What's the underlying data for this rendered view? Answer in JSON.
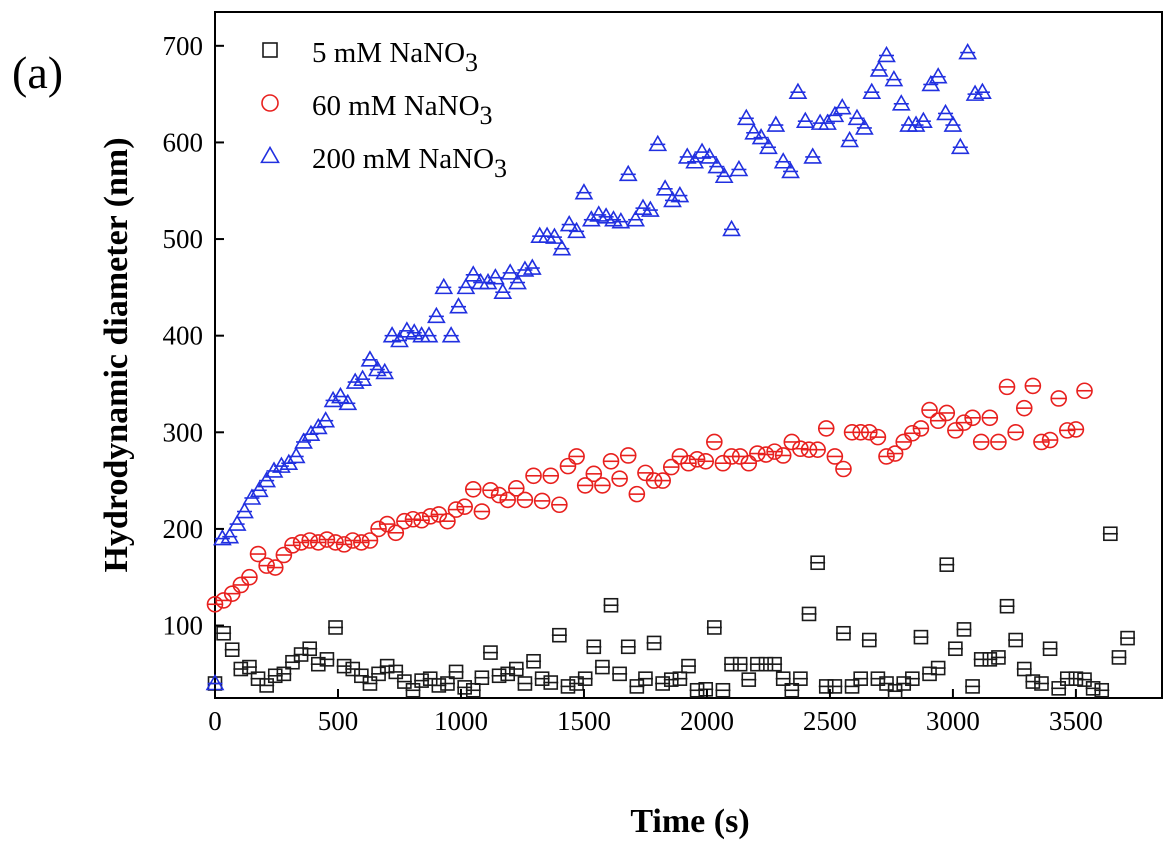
{
  "chart_data": {
    "type": "scatter",
    "panel_label": "(a)",
    "xlabel": "Time (s)",
    "ylabel": "Hydrodynamic diameter (nm)",
    "xlim": [
      0,
      3850
    ],
    "ylim": [
      25,
      735
    ],
    "xticks": [
      0,
      500,
      1000,
      1500,
      2000,
      2500,
      3000,
      3500
    ],
    "yticks": [
      100,
      200,
      300,
      400,
      500,
      600,
      700
    ],
    "legend_position": "top-left",
    "grid": false,
    "series": [
      {
        "name_main": "5 mM NaNO",
        "name_sub": "3",
        "marker": "square",
        "color": "#1a1a1a",
        "points": [
          [
            0,
            40
          ],
          [
            35,
            92
          ],
          [
            70,
            75
          ],
          [
            105,
            55
          ],
          [
            140,
            57
          ],
          [
            175,
            45
          ],
          [
            210,
            38
          ],
          [
            245,
            48
          ],
          [
            280,
            50
          ],
          [
            315,
            62
          ],
          [
            350,
            70
          ],
          [
            385,
            76
          ],
          [
            420,
            60
          ],
          [
            455,
            65
          ],
          [
            490,
            98
          ],
          [
            525,
            58
          ],
          [
            560,
            55
          ],
          [
            595,
            48
          ],
          [
            630,
            40
          ],
          [
            665,
            50
          ],
          [
            700,
            58
          ],
          [
            735,
            52
          ],
          [
            770,
            42
          ],
          [
            805,
            33
          ],
          [
            840,
            43
          ],
          [
            875,
            45
          ],
          [
            910,
            38
          ],
          [
            945,
            40
          ],
          [
            980,
            52
          ],
          [
            1015,
            36
          ],
          [
            1050,
            33
          ],
          [
            1085,
            46
          ],
          [
            1120,
            72
          ],
          [
            1155,
            48
          ],
          [
            1190,
            50
          ],
          [
            1225,
            55
          ],
          [
            1260,
            40
          ],
          [
            1295,
            63
          ],
          [
            1330,
            45
          ],
          [
            1365,
            41
          ],
          [
            1400,
            90
          ],
          [
            1435,
            37
          ],
          [
            1470,
            40
          ],
          [
            1505,
            45
          ],
          [
            1540,
            78
          ],
          [
            1575,
            57
          ],
          [
            1610,
            121
          ],
          [
            1645,
            50
          ],
          [
            1680,
            78
          ],
          [
            1715,
            37
          ],
          [
            1750,
            45
          ],
          [
            1785,
            82
          ],
          [
            1820,
            40
          ],
          [
            1855,
            44
          ],
          [
            1890,
            45
          ],
          [
            1925,
            58
          ],
          [
            1960,
            33
          ],
          [
            1995,
            34
          ],
          [
            2030,
            98
          ],
          [
            2065,
            33
          ],
          [
            2100,
            60
          ],
          [
            2135,
            60
          ],
          [
            2170,
            44
          ],
          [
            2205,
            60
          ],
          [
            2240,
            60
          ],
          [
            2275,
            60
          ],
          [
            2310,
            45
          ],
          [
            2345,
            33
          ],
          [
            2380,
            45
          ],
          [
            2415,
            112
          ],
          [
            2450,
            165
          ],
          [
            2485,
            37
          ],
          [
            2520,
            37
          ],
          [
            2555,
            92
          ],
          [
            2590,
            37
          ],
          [
            2625,
            45
          ],
          [
            2660,
            85
          ],
          [
            2695,
            45
          ],
          [
            2730,
            40
          ],
          [
            2765,
            32
          ],
          [
            2800,
            40
          ],
          [
            2835,
            45
          ],
          [
            2870,
            88
          ],
          [
            2905,
            50
          ],
          [
            2940,
            56
          ],
          [
            2975,
            163
          ],
          [
            3010,
            76
          ],
          [
            3045,
            96
          ],
          [
            3080,
            37
          ],
          [
            3115,
            65
          ],
          [
            3150,
            65
          ],
          [
            3185,
            67
          ],
          [
            3220,
            120
          ],
          [
            3255,
            85
          ],
          [
            3290,
            55
          ],
          [
            3325,
            42
          ],
          [
            3360,
            40
          ],
          [
            3395,
            76
          ],
          [
            3430,
            35
          ],
          [
            3465,
            45
          ],
          [
            3500,
            45
          ],
          [
            3535,
            44
          ],
          [
            3570,
            35
          ],
          [
            3605,
            33
          ],
          [
            3640,
            195
          ],
          [
            3675,
            67
          ],
          [
            3710,
            87
          ]
        ]
      },
      {
        "name_main": "60 mM NaNO",
        "name_sub": "3",
        "marker": "circle",
        "color": "#e8201e",
        "points": [
          [
            0,
            122
          ],
          [
            35,
            126
          ],
          [
            70,
            133
          ],
          [
            105,
            142
          ],
          [
            140,
            150
          ],
          [
            175,
            174
          ],
          [
            210,
            162
          ],
          [
            245,
            160
          ],
          [
            280,
            173
          ],
          [
            315,
            183
          ],
          [
            350,
            186
          ],
          [
            385,
            188
          ],
          [
            420,
            186
          ],
          [
            455,
            189
          ],
          [
            490,
            186
          ],
          [
            525,
            184
          ],
          [
            560,
            188
          ],
          [
            595,
            186
          ],
          [
            630,
            188
          ],
          [
            665,
            200
          ],
          [
            700,
            205
          ],
          [
            735,
            196
          ],
          [
            770,
            208
          ],
          [
            805,
            210
          ],
          [
            840,
            209
          ],
          [
            875,
            213
          ],
          [
            910,
            215
          ],
          [
            945,
            208
          ],
          [
            980,
            220
          ],
          [
            1015,
            223
          ],
          [
            1050,
            241
          ],
          [
            1085,
            218
          ],
          [
            1120,
            240
          ],
          [
            1155,
            235
          ],
          [
            1190,
            230
          ],
          [
            1225,
            242
          ],
          [
            1260,
            230
          ],
          [
            1295,
            255
          ],
          [
            1330,
            229
          ],
          [
            1365,
            255
          ],
          [
            1400,
            225
          ],
          [
            1435,
            265
          ],
          [
            1470,
            275
          ],
          [
            1505,
            245
          ],
          [
            1540,
            257
          ],
          [
            1575,
            245
          ],
          [
            1610,
            270
          ],
          [
            1645,
            252
          ],
          [
            1680,
            276
          ],
          [
            1715,
            236
          ],
          [
            1750,
            258
          ],
          [
            1785,
            250
          ],
          [
            1820,
            250
          ],
          [
            1855,
            264
          ],
          [
            1890,
            275
          ],
          [
            1925,
            268
          ],
          [
            1960,
            272
          ],
          [
            1995,
            270
          ],
          [
            2030,
            290
          ],
          [
            2065,
            268
          ],
          [
            2100,
            275
          ],
          [
            2135,
            275
          ],
          [
            2170,
            268
          ],
          [
            2205,
            278
          ],
          [
            2240,
            277
          ],
          [
            2275,
            280
          ],
          [
            2310,
            276
          ],
          [
            2345,
            290
          ],
          [
            2380,
            283
          ],
          [
            2415,
            282
          ],
          [
            2450,
            282
          ],
          [
            2485,
            304
          ],
          [
            2520,
            275
          ],
          [
            2555,
            262
          ],
          [
            2590,
            300
          ],
          [
            2625,
            300
          ],
          [
            2660,
            300
          ],
          [
            2695,
            295
          ],
          [
            2730,
            275
          ],
          [
            2765,
            278
          ],
          [
            2800,
            290
          ],
          [
            2835,
            299
          ],
          [
            2870,
            304
          ],
          [
            2905,
            323
          ],
          [
            2940,
            312
          ],
          [
            2975,
            320
          ],
          [
            3010,
            302
          ],
          [
            3045,
            310
          ],
          [
            3080,
            315
          ],
          [
            3115,
            290
          ],
          [
            3150,
            315
          ],
          [
            3185,
            290
          ],
          [
            3220,
            347
          ],
          [
            3255,
            300
          ],
          [
            3290,
            325
          ],
          [
            3325,
            348
          ],
          [
            3360,
            290
          ],
          [
            3395,
            292
          ],
          [
            3430,
            335
          ],
          [
            3465,
            302
          ],
          [
            3500,
            303
          ],
          [
            3535,
            343
          ]
        ]
      },
      {
        "name_main": "200 mM NaNO",
        "name_sub": "3",
        "marker": "triangle",
        "color": "#2130e0",
        "points": [
          [
            0,
            40
          ],
          [
            30,
            190
          ],
          [
            60,
            192
          ],
          [
            90,
            205
          ],
          [
            120,
            218
          ],
          [
            150,
            232
          ],
          [
            180,
            240
          ],
          [
            210,
            250
          ],
          [
            240,
            260
          ],
          [
            270,
            265
          ],
          [
            300,
            268
          ],
          [
            330,
            275
          ],
          [
            360,
            290
          ],
          [
            390,
            298
          ],
          [
            420,
            305
          ],
          [
            450,
            312
          ],
          [
            480,
            333
          ],
          [
            510,
            337
          ],
          [
            540,
            330
          ],
          [
            570,
            352
          ],
          [
            600,
            355
          ],
          [
            630,
            375
          ],
          [
            660,
            365
          ],
          [
            690,
            362
          ],
          [
            720,
            400
          ],
          [
            750,
            395
          ],
          [
            780,
            405
          ],
          [
            810,
            403
          ],
          [
            840,
            400
          ],
          [
            870,
            400
          ],
          [
            900,
            420
          ],
          [
            930,
            450
          ],
          [
            960,
            400
          ],
          [
            990,
            430
          ],
          [
            1020,
            450
          ],
          [
            1050,
            463
          ],
          [
            1080,
            455
          ],
          [
            1110,
            455
          ],
          [
            1140,
            460
          ],
          [
            1170,
            445
          ],
          [
            1200,
            465
          ],
          [
            1230,
            455
          ],
          [
            1260,
            468
          ],
          [
            1290,
            470
          ],
          [
            1320,
            503
          ],
          [
            1350,
            503
          ],
          [
            1380,
            502
          ],
          [
            1410,
            490
          ],
          [
            1440,
            515
          ],
          [
            1470,
            508
          ],
          [
            1500,
            548
          ],
          [
            1530,
            520
          ],
          [
            1560,
            525
          ],
          [
            1590,
            523
          ],
          [
            1620,
            520
          ],
          [
            1650,
            518
          ],
          [
            1680,
            567
          ],
          [
            1710,
            520
          ],
          [
            1740,
            532
          ],
          [
            1770,
            530
          ],
          [
            1800,
            598
          ],
          [
            1830,
            552
          ],
          [
            1860,
            540
          ],
          [
            1890,
            545
          ],
          [
            1920,
            585
          ],
          [
            1950,
            580
          ],
          [
            1980,
            590
          ],
          [
            2010,
            585
          ],
          [
            2040,
            575
          ],
          [
            2070,
            565
          ],
          [
            2100,
            510
          ],
          [
            2130,
            572
          ],
          [
            2160,
            625
          ],
          [
            2190,
            610
          ],
          [
            2220,
            605
          ],
          [
            2250,
            595
          ],
          [
            2280,
            618
          ],
          [
            2310,
            580
          ],
          [
            2340,
            570
          ],
          [
            2370,
            652
          ],
          [
            2400,
            622
          ],
          [
            2430,
            585
          ],
          [
            2460,
            620
          ],
          [
            2490,
            620
          ],
          [
            2520,
            628
          ],
          [
            2550,
            636
          ],
          [
            2580,
            602
          ],
          [
            2610,
            625
          ],
          [
            2640,
            615
          ],
          [
            2670,
            652
          ],
          [
            2700,
            675
          ],
          [
            2730,
            690
          ],
          [
            2760,
            665
          ],
          [
            2790,
            640
          ],
          [
            2820,
            618
          ],
          [
            2850,
            618
          ],
          [
            2880,
            622
          ],
          [
            2910,
            660
          ],
          [
            2940,
            668
          ],
          [
            2970,
            630
          ],
          [
            3000,
            618
          ],
          [
            3030,
            595
          ],
          [
            3060,
            693
          ],
          [
            3090,
            650
          ],
          [
            3120,
            652
          ]
        ]
      }
    ]
  }
}
